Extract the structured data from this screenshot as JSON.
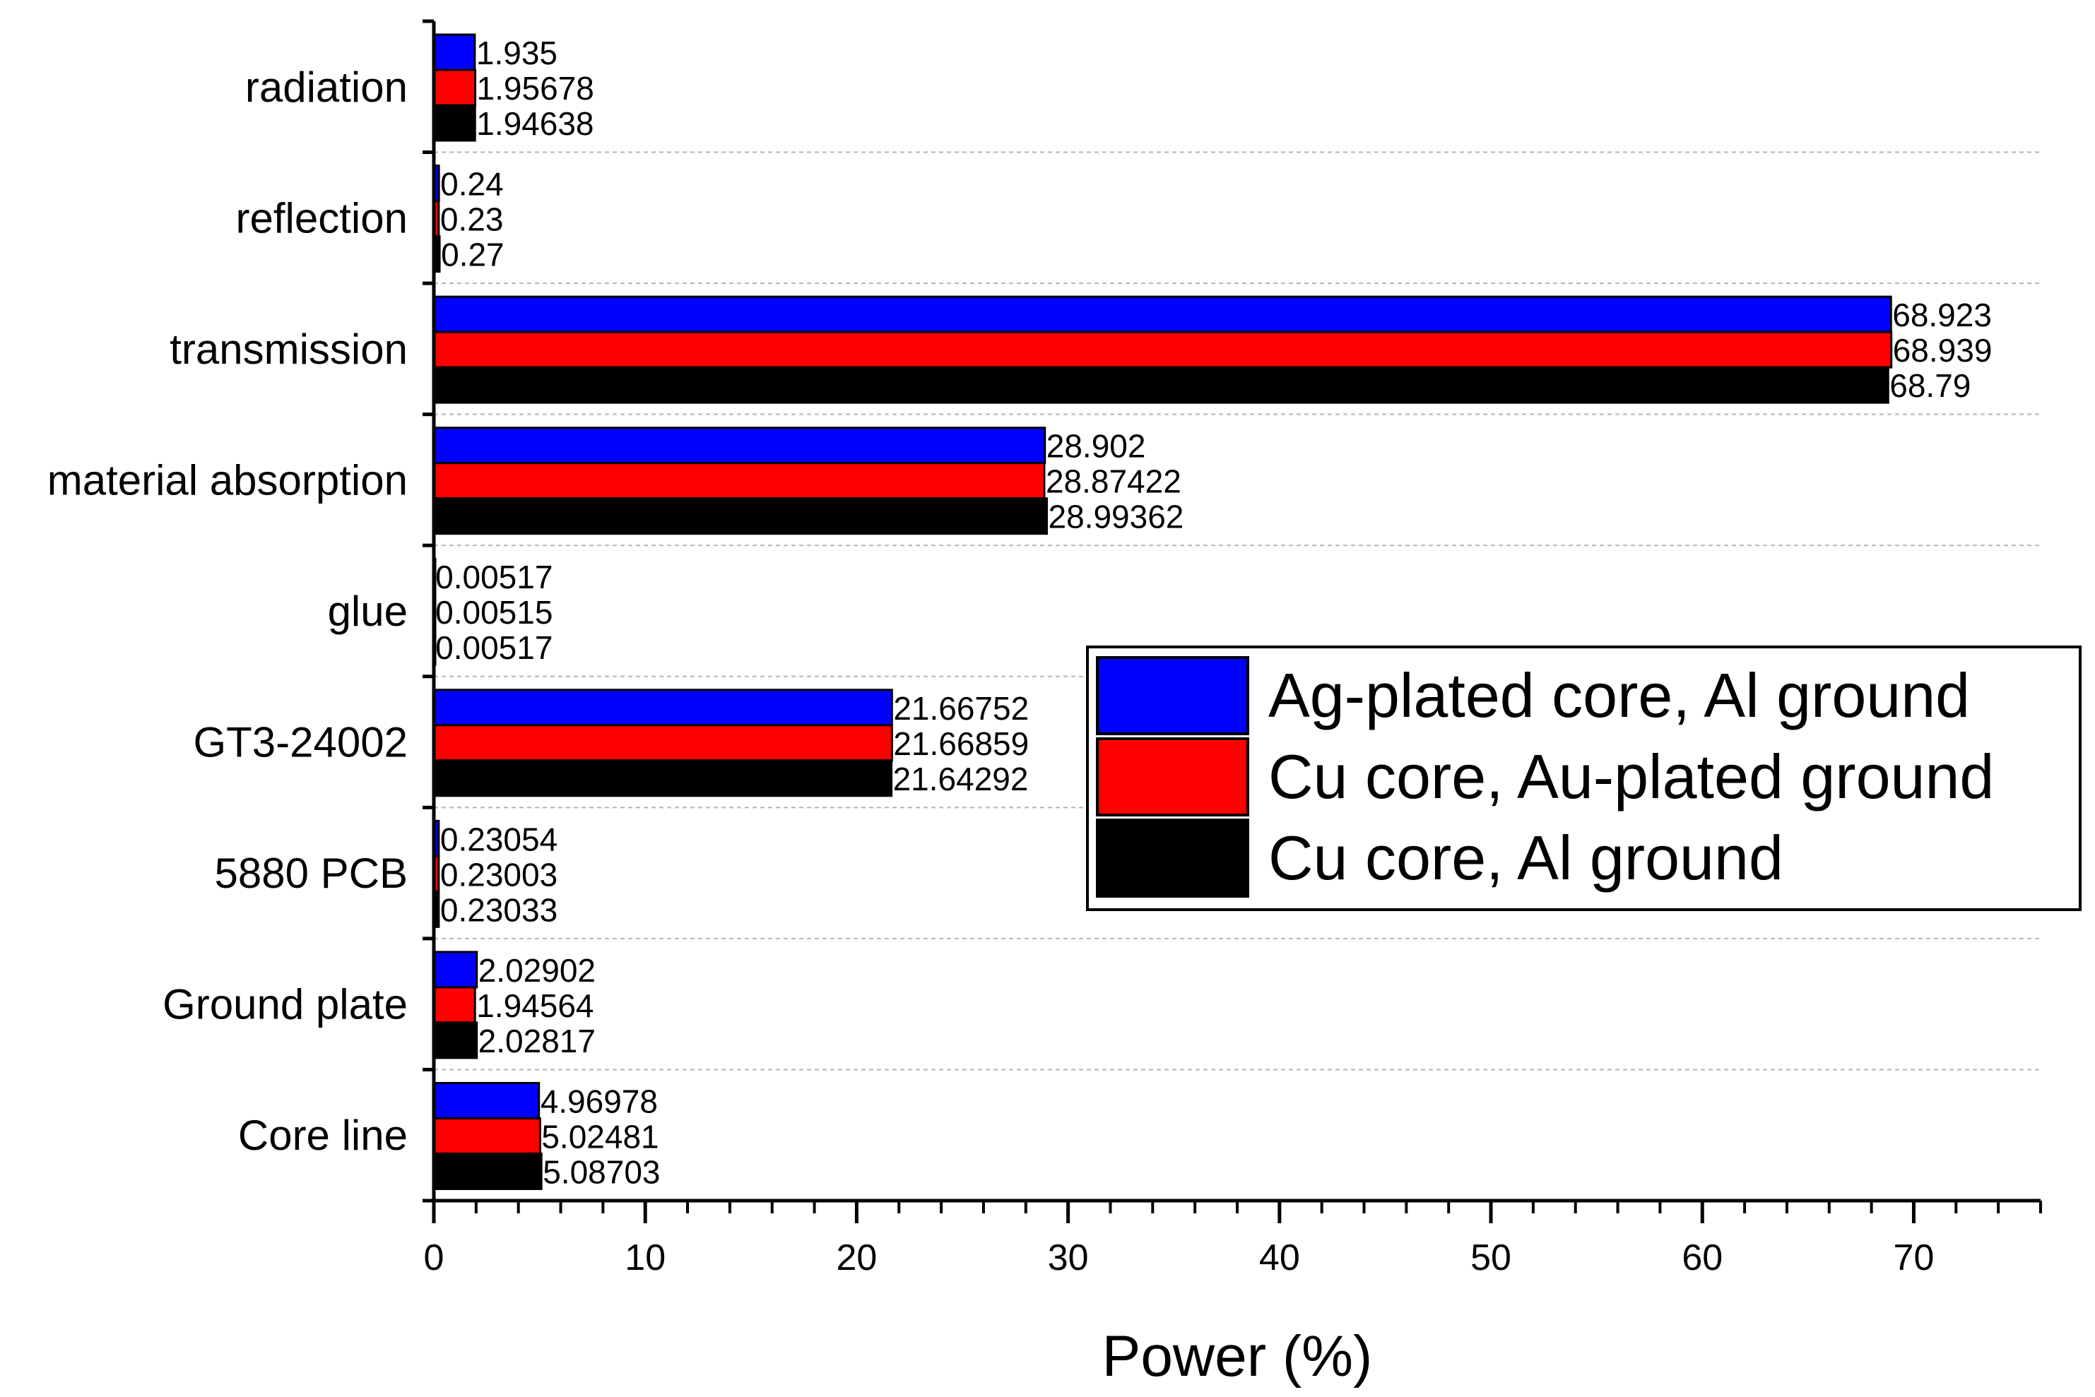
{
  "chart_data": {
    "type": "bar",
    "orientation": "horizontal",
    "title": "",
    "xlabel": "Power (%)",
    "ylabel": "",
    "xlim": [
      0,
      76
    ],
    "xticks": [
      0,
      10,
      20,
      30,
      40,
      50,
      60,
      70
    ],
    "xtick_labels": [
      "0",
      "10",
      "20",
      "30",
      "40",
      "50",
      "60",
      "70"
    ],
    "grid": "dashed horizontal separators between categories",
    "legend_position": "right",
    "categories": [
      "radiation",
      "reflection",
      "transmission",
      "material absorption",
      "glue",
      "GT3-24002",
      "5880 PCB",
      "Ground plate",
      "Core line"
    ],
    "series": [
      {
        "name": "Ag-plated core, Al ground",
        "color": "#0000ff",
        "values": [
          1.935,
          0.24,
          68.923,
          28.902,
          0.00517,
          21.66752,
          0.23054,
          2.02902,
          4.96978
        ],
        "labels": [
          "1.935",
          "0.24",
          "68.923",
          "28.902",
          "0.00517",
          "21.66752",
          "0.23054",
          "2.02902",
          "4.96978"
        ]
      },
      {
        "name": "Cu core, Au-plated ground",
        "color": "#ff0000",
        "values": [
          1.95678,
          0.23,
          68.939,
          28.87422,
          0.00515,
          21.66859,
          0.23003,
          1.94564,
          5.02481
        ],
        "labels": [
          "1.95678",
          "0.23",
          "68.939",
          "28.87422",
          "0.00515",
          "21.66859",
          "0.23003",
          "1.94564",
          "5.02481"
        ]
      },
      {
        "name": "Cu core, Al ground",
        "color": "#000000",
        "values": [
          1.94638,
          0.27,
          68.79,
          28.99362,
          0.00517,
          21.64292,
          0.23033,
          2.02817,
          5.08703
        ],
        "labels": [
          "1.94638",
          "0.27",
          "68.79",
          "28.99362",
          "0.00517",
          "21.64292",
          "0.23033",
          "2.02817",
          "5.08703"
        ]
      }
    ]
  }
}
